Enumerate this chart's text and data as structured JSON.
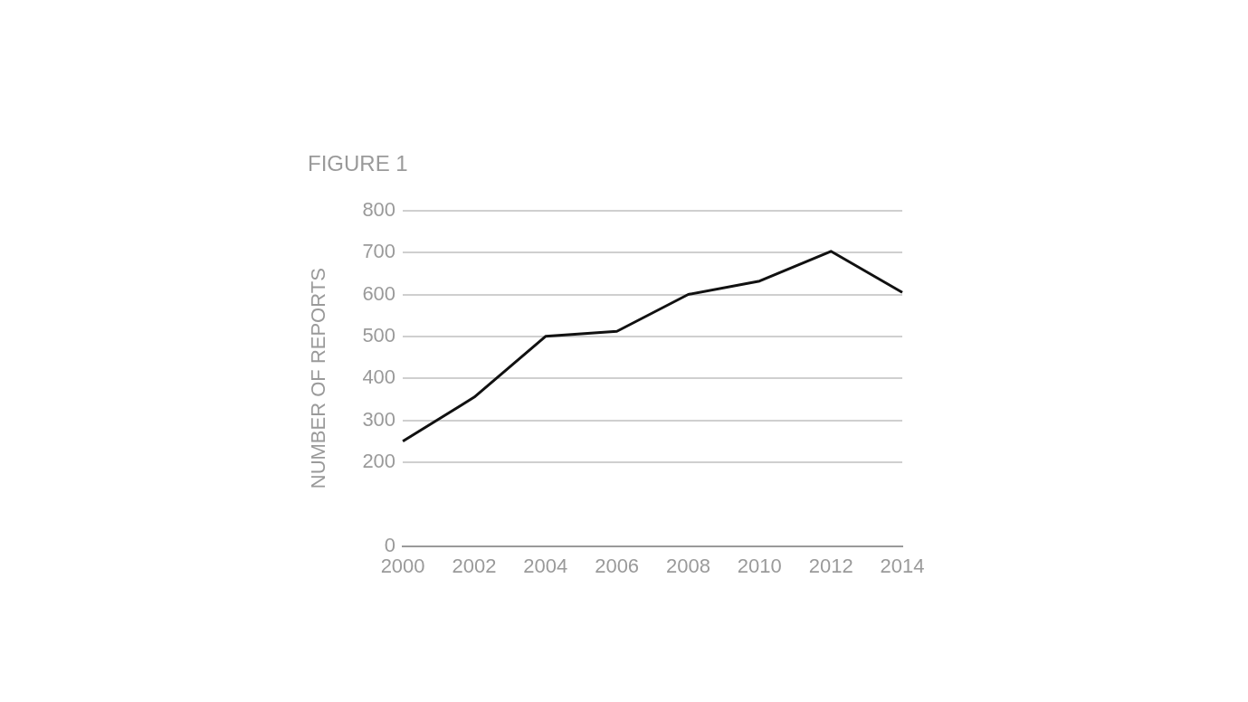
{
  "chart_data": {
    "type": "line",
    "title": "FIGURE 1",
    "ylabel": "NUMBER OF REPORTS",
    "x": [
      2000,
      2002,
      2004,
      2006,
      2008,
      2010,
      2012,
      2014
    ],
    "series": [
      {
        "color": "#111111",
        "values": [
          250,
          355,
          500,
          512,
          600,
          632,
          703,
          605
        ]
      }
    ],
    "xlim": [
      2000,
      2014
    ],
    "xticks": [
      2000,
      2002,
      2004,
      2006,
      2008,
      2010,
      2012,
      2014
    ],
    "ylim": [
      0,
      800
    ],
    "yticks": [
      0,
      200,
      300,
      400,
      500,
      600,
      700,
      800
    ],
    "grid": "y",
    "legend": false,
    "marker": "none",
    "line_style": "solid"
  }
}
